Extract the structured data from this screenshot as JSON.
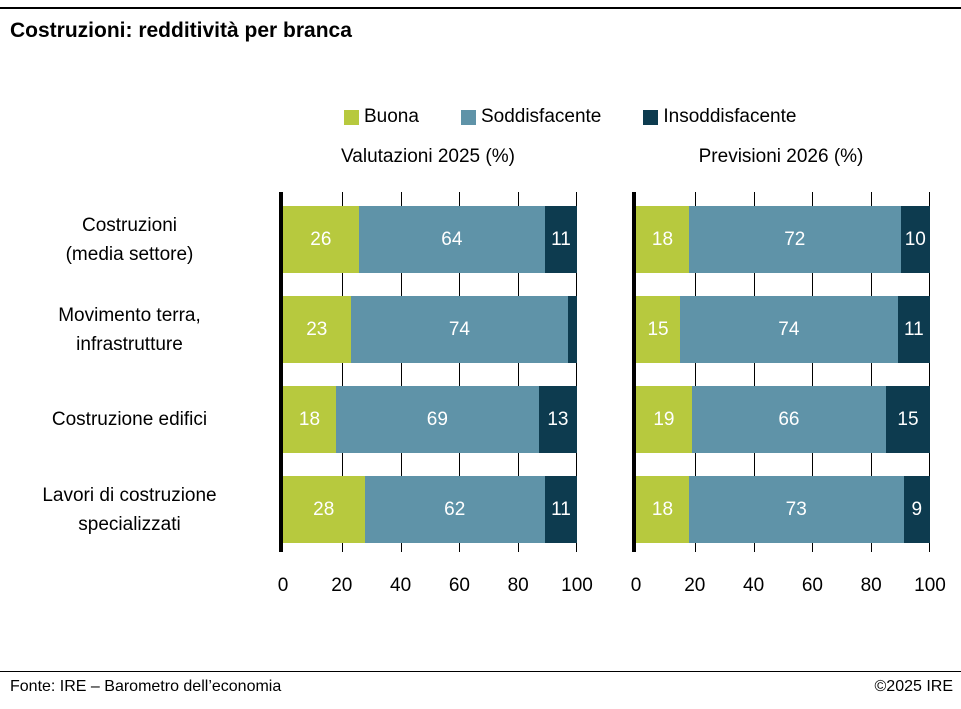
{
  "title": "Costruzioni: redditività per branca",
  "legend": [
    {
      "label": "Buona",
      "color": "#b7c93e"
    },
    {
      "label": "Soddisfacente",
      "color": "#5f93a8"
    },
    {
      "label": "Insoddisfacente",
      "color": "#0d3b4f"
    }
  ],
  "footer": {
    "source": "Fonte: IRE – Barometro dell’economia",
    "copyright": "©2025 IRE"
  },
  "chart_data": {
    "type": "bar",
    "orientation": "horizontal",
    "stacked": true,
    "unit": "%",
    "grid": true,
    "legend_position": "top",
    "label_min_value": 5,
    "xlim": [
      0,
      100
    ],
    "xticks": [
      "0",
      "20",
      "40",
      "60",
      "80",
      "100"
    ],
    "categories": [
      "Costruzioni (media settore)",
      "Movimento terra, infrastrutture",
      "Costruzione edifici",
      "Lavori di costruzione specializzati"
    ],
    "category_lines": [
      [
        "Costruzioni",
        "(media settore)"
      ],
      [
        "Movimento terra,",
        "infrastrutture"
      ],
      [
        "Costruzione edifici"
      ],
      [
        "Lavori di costruzione",
        "specializzati"
      ]
    ],
    "series_names": [
      "Buona",
      "Soddisfacente",
      "Insoddisfacente"
    ],
    "panels": [
      {
        "title": "Valutazioni 2025 (%)",
        "series": [
          {
            "name": "Buona",
            "values": [
              26,
              23,
              18,
              28
            ]
          },
          {
            "name": "Soddisfacente",
            "values": [
              64,
              74,
              69,
              62
            ]
          },
          {
            "name": "Insoddisfacente",
            "values": [
              11,
              3,
              13,
              11
            ]
          }
        ]
      },
      {
        "title": "Previsioni 2026 (%)",
        "series": [
          {
            "name": "Buona",
            "values": [
              18,
              15,
              19,
              18
            ]
          },
          {
            "name": "Soddisfacente",
            "values": [
              72,
              74,
              66,
              73
            ]
          },
          {
            "name": "Insoddisfacente",
            "values": [
              10,
              11,
              15,
              9
            ]
          }
        ]
      }
    ]
  }
}
